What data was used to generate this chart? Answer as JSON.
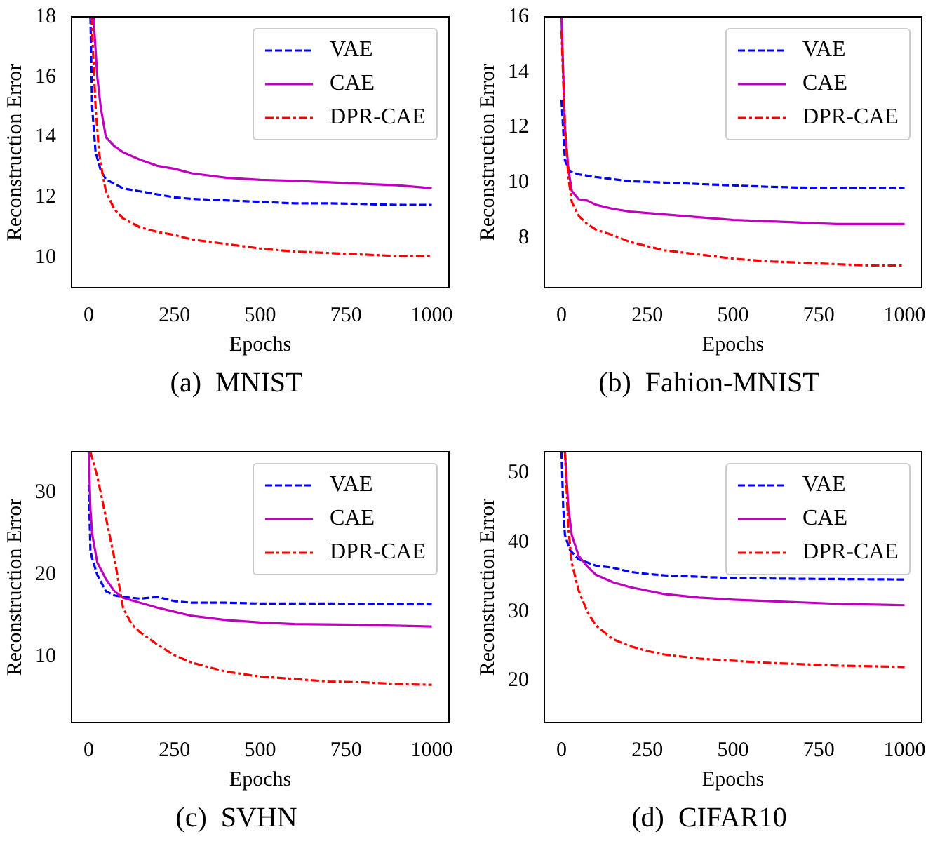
{
  "chart_data": [
    {
      "type": "line",
      "xlabel": "Epochs",
      "ylabel": "Reconstruction Error",
      "annotations": [
        "(a)  MNIST"
      ],
      "xlim": [
        -50,
        1050
      ],
      "ylim": [
        9,
        18
      ],
      "xticks": [
        0,
        250,
        500,
        750,
        1000
      ],
      "yticks": [
        10,
        12,
        14,
        16,
        18
      ],
      "grid": false,
      "legend": "top right",
      "marker": "none",
      "series": [
        {
          "name": "VAE",
          "color": "#0000ff",
          "line_style": "dashed",
          "x": [
            5,
            10,
            20,
            35,
            50,
            100,
            150,
            200,
            250,
            300,
            400,
            500,
            600,
            700,
            800,
            900,
            1000
          ],
          "values": [
            18,
            15,
            13.5,
            12.9,
            12.6,
            12.3,
            12.2,
            12.1,
            12.0,
            11.95,
            11.9,
            11.85,
            11.8,
            11.8,
            11.78,
            11.75,
            11.75
          ]
        },
        {
          "name": "CAE",
          "color": "#bf00bf",
          "line_style": "solid",
          "x": [
            14,
            25,
            35,
            50,
            75,
            100,
            150,
            200,
            250,
            300,
            400,
            500,
            600,
            700,
            800,
            900,
            1000
          ],
          "values": [
            18,
            16,
            15,
            14.0,
            13.7,
            13.5,
            13.25,
            13.05,
            12.95,
            12.8,
            12.65,
            12.58,
            12.55,
            12.5,
            12.45,
            12.4,
            12.3
          ]
        },
        {
          "name": "DPR-CAE",
          "color": "#ff0000",
          "line_style": "dashdot",
          "x": [
            8,
            20,
            30,
            40,
            50,
            75,
            100,
            150,
            200,
            250,
            300,
            400,
            500,
            600,
            700,
            800,
            900,
            1000
          ],
          "values": [
            18,
            15,
            13.5,
            12.8,
            12.2,
            11.6,
            11.3,
            11.0,
            10.85,
            10.75,
            10.6,
            10.45,
            10.3,
            10.2,
            10.15,
            10.1,
            10.05,
            10.05
          ]
        }
      ]
    },
    {
      "type": "line",
      "xlabel": "Epochs",
      "ylabel": "Reconstruction Error",
      "annotations": [
        "(b)  Fahion-MNIST"
      ],
      "xlim": [
        -50,
        1050
      ],
      "ylim": [
        6.2,
        16
      ],
      "xticks": [
        0,
        250,
        500,
        750,
        1000
      ],
      "yticks": [
        8,
        10,
        12,
        14,
        16
      ],
      "grid": false,
      "legend": "top right",
      "marker": "none",
      "series": [
        {
          "name": "VAE",
          "color": "#0000ff",
          "line_style": "dashed",
          "x": [
            0,
            10,
            25,
            50,
            100,
            200,
            300,
            400,
            500,
            600,
            700,
            800,
            900,
            1000
          ],
          "values": [
            13,
            10.8,
            10.4,
            10.3,
            10.2,
            10.05,
            10.0,
            9.95,
            9.9,
            9.85,
            9.82,
            9.8,
            9.8,
            9.8
          ]
        },
        {
          "name": "CAE",
          "color": "#bf00bf",
          "line_style": "solid",
          "x": [
            0,
            10,
            20,
            30,
            50,
            75,
            100,
            150,
            200,
            300,
            400,
            500,
            600,
            700,
            800,
            1000
          ],
          "values": [
            16,
            12,
            10.5,
            9.7,
            9.4,
            9.35,
            9.2,
            9.05,
            8.95,
            8.85,
            8.75,
            8.65,
            8.6,
            8.55,
            8.5,
            8.5
          ]
        },
        {
          "name": "DPR-CAE",
          "color": "#ff0000",
          "line_style": "dashdot",
          "x": [
            0,
            10,
            20,
            30,
            50,
            75,
            100,
            150,
            200,
            250,
            300,
            400,
            500,
            600,
            700,
            800,
            900,
            1000
          ],
          "values": [
            15.5,
            12,
            10.2,
            9.3,
            8.8,
            8.5,
            8.3,
            8.1,
            7.85,
            7.7,
            7.55,
            7.4,
            7.25,
            7.15,
            7.1,
            7.05,
            7.0,
            7.0
          ]
        }
      ]
    },
    {
      "type": "line",
      "xlabel": "Epochs",
      "ylabel": "Reconstruction Error",
      "annotations": [
        "(c)  SVHN"
      ],
      "xlim": [
        -50,
        1050
      ],
      "ylim": [
        2,
        35
      ],
      "xticks": [
        0,
        250,
        500,
        750,
        1000
      ],
      "yticks": [
        10,
        20,
        30
      ],
      "grid": false,
      "legend": "top right",
      "marker": "none",
      "series": [
        {
          "name": "VAE",
          "color": "#0000ff",
          "line_style": "dashed",
          "x": [
            0,
            5,
            10,
            25,
            50,
            75,
            100,
            150,
            200,
            250,
            300,
            400,
            500,
            700,
            1000
          ],
          "values": [
            31,
            23,
            22,
            20,
            18,
            17.5,
            17.3,
            17.1,
            17.3,
            16.8,
            16.6,
            16.6,
            16.5,
            16.5,
            16.4
          ]
        },
        {
          "name": "CAE",
          "color": "#bf00bf",
          "line_style": "solid",
          "x": [
            0,
            5,
            10,
            25,
            50,
            75,
            100,
            150,
            200,
            250,
            300,
            400,
            500,
            600,
            800,
            1000
          ],
          "values": [
            35,
            28,
            25,
            21.5,
            19.5,
            18,
            17.2,
            16.6,
            16,
            15.5,
            15,
            14.5,
            14.2,
            14.0,
            13.9,
            13.7
          ]
        },
        {
          "name": "DPR-CAE",
          "color": "#ff0000",
          "line_style": "dashdot",
          "x": [
            5,
            25,
            50,
            75,
            100,
            125,
            150,
            200,
            250,
            300,
            400,
            500,
            600,
            700,
            800,
            900,
            1000
          ],
          "values": [
            35,
            32,
            27,
            22,
            16,
            14,
            13,
            11.5,
            10.2,
            9.3,
            8.2,
            7.6,
            7.3,
            7.0,
            6.9,
            6.7,
            6.6
          ]
        }
      ]
    },
    {
      "type": "line",
      "xlabel": "Epochs",
      "ylabel": "Reconstruction Error",
      "annotations": [
        "(d)  CIFAR10"
      ],
      "xlim": [
        -50,
        1050
      ],
      "ylim": [
        14,
        53
      ],
      "xticks": [
        0,
        250,
        500,
        750,
        1000
      ],
      "yticks": [
        20,
        30,
        40,
        50
      ],
      "grid": false,
      "legend": "top right",
      "marker": "none",
      "series": [
        {
          "name": "VAE",
          "color": "#0000ff",
          "line_style": "dashed",
          "x": [
            0,
            5,
            10,
            25,
            50,
            100,
            150,
            200,
            250,
            300,
            400,
            500,
            700,
            1000
          ],
          "values": [
            53,
            45,
            41,
            38.8,
            37.5,
            36.6,
            36.3,
            35.7,
            35.4,
            35.2,
            35.0,
            34.8,
            34.7,
            34.6
          ]
        },
        {
          "name": "CAE",
          "color": "#bf00bf",
          "line_style": "solid",
          "x": [
            10,
            20,
            30,
            50,
            75,
            100,
            150,
            200,
            250,
            300,
            400,
            500,
            600,
            700,
            800,
            1000
          ],
          "values": [
            53,
            45,
            41,
            38,
            36.5,
            35.3,
            34.2,
            33.5,
            33.0,
            32.5,
            32.0,
            31.7,
            31.5,
            31.3,
            31.1,
            30.9
          ]
        },
        {
          "name": "DPR-CAE",
          "color": "#ff0000",
          "line_style": "dashdot",
          "x": [
            10,
            20,
            30,
            50,
            75,
            100,
            150,
            200,
            250,
            300,
            400,
            500,
            600,
            700,
            800,
            1000
          ],
          "values": [
            53,
            42,
            37,
            33,
            30,
            28,
            26,
            25,
            24.3,
            23.8,
            23.2,
            22.9,
            22.6,
            22.4,
            22.2,
            22.0
          ]
        }
      ]
    }
  ]
}
